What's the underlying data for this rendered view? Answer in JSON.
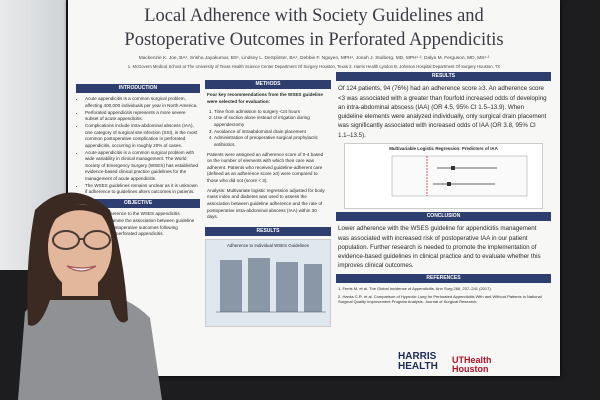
{
  "poster": {
    "title": [
      "Local Adherence with Society Guidelines and",
      "Postoperative Outcomes in Perforated Appendicitis"
    ],
    "authors": "Mackenzie K. Joe, BA¹, Srisha Jayakumar, BS¹, Lindsey L. DeSplinter, BA¹, Debbie F. Nguyen, MPH¹, Jonah J. Stulberg, MD, MPH¹·², Dalya M. Ferguson, MD, MS¹·²",
    "affiliations": "1. McGovern Medical School at The University of Texas Health Science Center Department Of Surgery Houston, Texas  2. Harris Health Lyndon B. Johnson Hospital Department Of Surgery Houston, TX",
    "introduction": {
      "heading": "INTRODUCTION",
      "items": [
        "Acute appendicitis is a common surgical problem, affecting 400,000 individuals per year in North America.",
        "Perforated appendicitis represents a more severe subset of acute appendicitis.",
        "Complications include intra-abdominal abscess (IAA), one category of surgical site infection (SSI), is the most common postoperative complication in perforated appendicitis, occurring in roughly 20% of cases.",
        "Acute appendicitis is a common surgical problem with wide variability in clinical management. The World Society of Emergency Surgery (WSES) has established evidence-based clinical practice guidelines for the management of acute appendicitis.",
        "The WSES guidelines remains unclear as it is unknown if adherence to guidelines alters outcomes in patients."
      ]
    },
    "objective": {
      "heading": "OBJECTIVE",
      "text": "Assess local adherence to the WSES appendicitis guideline and examine the association between guideline adherence and postoperative outcomes following appendectomy for perforated appendicitis."
    },
    "methods": {
      "heading": "METHODS",
      "intro": "Four key recommendations from the WSES guideline were selected for evaluation:",
      "items": [
        "Time from admission to surgery <24 hours",
        "Use of suction alone instead of irrigation during appendectomy",
        "Avoidance of intraabdominal drain placement",
        "Administration of preoperative surgical prophylactic antibiotics."
      ],
      "scoring": "Patients were assigned an adherence score of 0-4 based on the number of elements with which their care was adherent. Patients who received guideline-adherent care (defined as an adherence score ≥3) were compared to those who did not (score < 3).",
      "analysis": "Analysis: Multivariate logistic regression adjusted for body mass index and diabetes was used to assess the association between guideline adherence and the rate of postoperative intra-abdominal abscess (IAA) within 30 days."
    },
    "results": {
      "heading": "RESULTS",
      "text": "Of 124 patients, 94 (76%) had an adherence score ≥3. An adherence score <3 was associated with a greater than fourfold increased odds of developing an intra-abdominal abscess (IAA) (OR 4.5, 95% CI 1.5–13.9). When guideline elements were analyzed individually, only surgical drain placement was significantly associated with increased odds of IAA (OR 3.8, 95% CI 1.1–13.5).",
      "forest_title": "Multivariable Logistic Regression: Predictors of IAA",
      "bar_title": "Adherence to Individual WSES Guidelines"
    },
    "conclusion": {
      "heading": "CONCLUSION",
      "text": "Lower adherence with the WSES guideline for appendicitis management was associated with increased risk of postoperative IAA in our patient population. Further research is needed to promote the implementation of evidence-based guidelines in clinical practice and to evaluate whether this improves clinical outcomes."
    },
    "references": {
      "heading": "REFERENCES",
      "items": [
        "1. Ferris M, et al. The Global Incidence of Appendicitis. Ann Surg 266, 237–241 (2017).",
        "2. Hanks C.R. et al. Comparison of Hypnotic Lung for Perforated Appendicitis With and Without Patients in National Surgical Quality Improvement Program Analysis. Journal of Surgical Research."
      ]
    },
    "logos": [
      "HARRIS HEALTH",
      "UTHealth Houston"
    ]
  }
}
